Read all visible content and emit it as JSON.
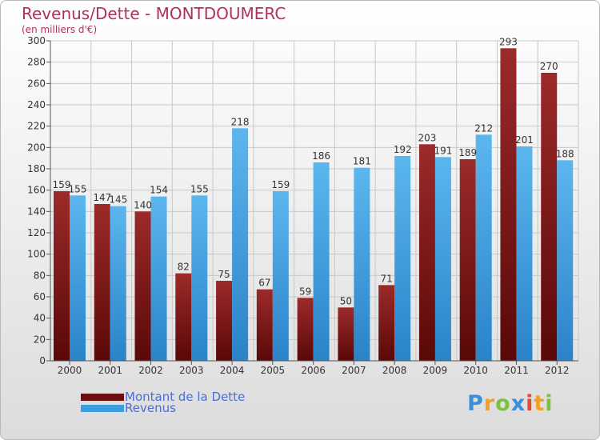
{
  "header": {
    "title": "Revenus/Dette - MONTDOUMERC",
    "subtitle": "(en milliers d'€)"
  },
  "chart_data": {
    "type": "bar",
    "categories": [
      "2000",
      "2001",
      "2002",
      "2003",
      "2004",
      "2005",
      "2006",
      "2007",
      "2008",
      "2009",
      "2010",
      "2011",
      "2012"
    ],
    "series": [
      {
        "name": "Montant de la Dette",
        "color": "#8b1a1a",
        "values": [
          159,
          147,
          140,
          82,
          75,
          67,
          59,
          50,
          71,
          203,
          189,
          293,
          270
        ]
      },
      {
        "name": "Revenus",
        "color": "#3a9ee0",
        "values": [
          155,
          145,
          154,
          155,
          218,
          159,
          186,
          181,
          192,
          191,
          212,
          201,
          188
        ]
      }
    ],
    "ylim": [
      0,
      300
    ],
    "yticks": [
      0,
      20,
      40,
      60,
      80,
      100,
      120,
      140,
      160,
      180,
      200,
      220,
      240,
      260,
      280,
      300
    ],
    "grid": true,
    "legend_position": "bottom-left"
  },
  "legend": {
    "items": [
      {
        "label": "Montant de la Dette",
        "color": "#6b0f0f"
      },
      {
        "label": "Revenus",
        "color": "#3a9ee0"
      }
    ]
  },
  "logo": {
    "letters": [
      "P",
      "r",
      "o",
      "x",
      "i",
      "t",
      "i"
    ],
    "colors": [
      "#3a8fd8",
      "#f2a023",
      "#7cc242",
      "#3a8fd8",
      "#e94a2b",
      "#f2a023",
      "#7cc242"
    ]
  }
}
